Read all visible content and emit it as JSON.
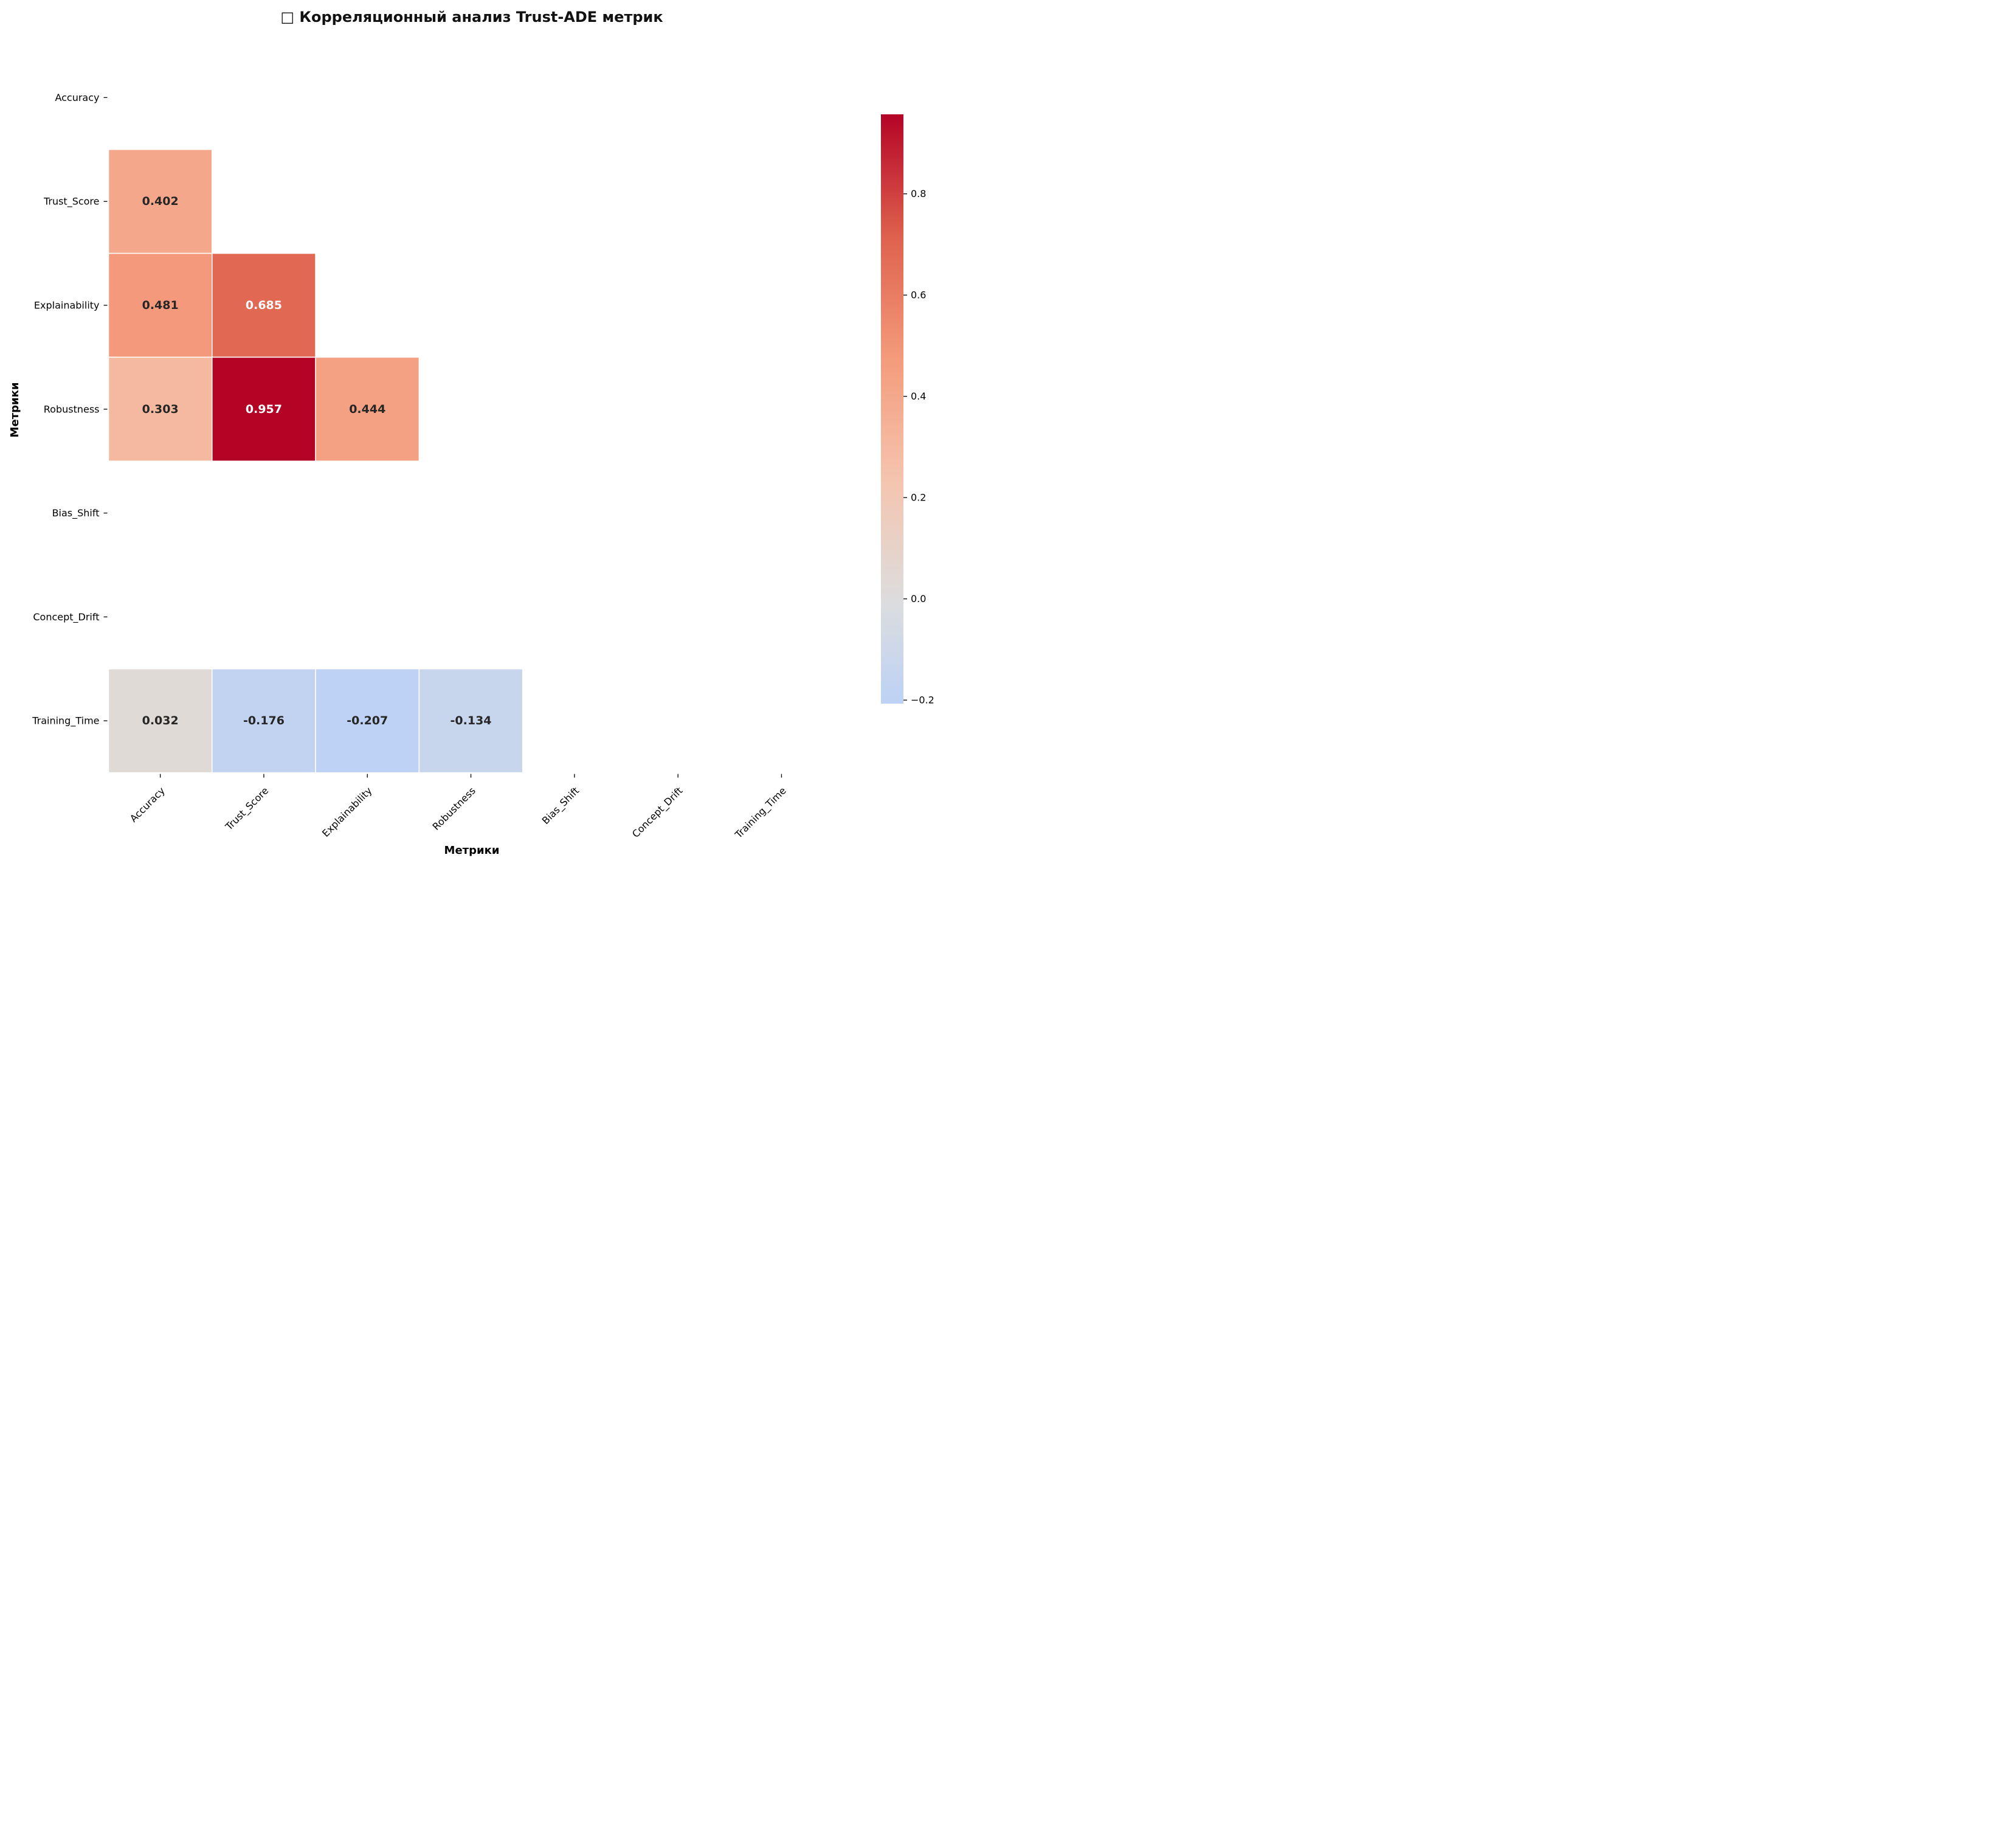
{
  "chart_data": {
    "type": "heatmap",
    "title": "□ Корреляционный анализ Trust-ADE метрик",
    "xlabel": "Метрики",
    "ylabel": "Метрики",
    "rows": [
      "Accuracy",
      "Trust_Score",
      "Explainability",
      "Robustness",
      "Bias_Shift",
      "Concept_Drift",
      "Training_Time"
    ],
    "columns": [
      "Accuracy",
      "Trust_Score",
      "Explainability",
      "Robustness",
      "Bias_Shift",
      "Concept_Drift",
      "Training_Time"
    ],
    "values": [
      [
        null,
        null,
        null,
        null,
        null,
        null,
        null
      ],
      [
        0.402,
        null,
        null,
        null,
        null,
        null,
        null
      ],
      [
        0.481,
        0.685,
        null,
        null,
        null,
        null,
        null
      ],
      [
        0.303,
        0.957,
        0.444,
        null,
        null,
        null,
        null
      ],
      [
        null,
        null,
        null,
        null,
        null,
        null,
        null
      ],
      [
        null,
        null,
        null,
        null,
        null,
        null,
        null
      ],
      [
        0.032,
        -0.176,
        -0.207,
        -0.134,
        null,
        null,
        null
      ]
    ],
    "value_format": "0.000",
    "colormap": "coolwarm",
    "center": 0,
    "vmin": -0.207,
    "vmax": 0.957,
    "colorbar": {
      "ticks": [
        -0.2,
        0.0,
        0.2,
        0.4,
        0.6,
        0.8
      ],
      "tick_labels": [
        "−0.2",
        "0.0",
        "0.2",
        "0.4",
        "0.6",
        "0.8"
      ]
    },
    "grid": false
  }
}
